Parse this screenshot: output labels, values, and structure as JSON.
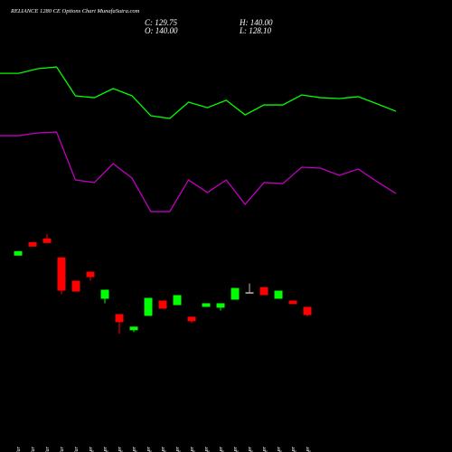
{
  "chart_data": [
    {
      "type": "line",
      "title": "RELIANCE 1280 CE Options Chart MunafaSutra.com",
      "ylim": [
        0,
        100
      ],
      "series": [
        {
          "name": null,
          "color": "#00ff00",
          "values": [
            88.9,
            88.9,
            91.6,
            92.6,
            75.8,
            74.7,
            80.0,
            75.8,
            64.2,
            62.6,
            72.1,
            68.9,
            73.2,
            64.7,
            70.5,
            70.5,
            76.3,
            74.7,
            74.2,
            75.3,
            71.1,
            66.8
          ]
        },
        {
          "name": null,
          "color": "#c000c0",
          "values": [
            52.6,
            52.6,
            54.2,
            54.7,
            26.8,
            25.3,
            36.3,
            27.9,
            8.4,
            8.4,
            26.8,
            19.5,
            26.8,
            12.6,
            25.3,
            24.7,
            34.2,
            33.7,
            29.5,
            33.2,
            25.8,
            18.9
          ]
        }
      ]
    },
    {
      "type": "candlestick",
      "close_text": "C: 129.75",
      "open_text": "O: 140.00",
      "high_text": "H: 140.00",
      "low_text": "L: 128.10",
      "categories": [
        "22 Mar",
        "24 Mar",
        "25 Mar",
        "27 Mar",
        "28 Mar",
        "01 Apr",
        "02 Apr",
        "06 Apr",
        "07 Apr",
        "08 Apr",
        "09 Apr",
        "10 Apr",
        "12 Apr",
        "15 Apr",
        "16 Apr",
        "17 Apr",
        "20 Apr",
        "21 Apr",
        "22 Apr",
        "23 Apr",
        "24 Apr"
      ],
      "open": [
        203.8,
        220.6,
        225.1,
        201.6,
        172.5,
        183.7,
        150.1,
        131.0,
        110.9,
        128.8,
        147.8,
        142.2,
        127.7,
        140.0,
        138.9,
        149.0,
        158.2,
        164.6,
        150.1,
        147.8,
        140.0
      ],
      "close": [
        209.4,
        215.0,
        219.5,
        160.2,
        159.0,
        177.0,
        161.3,
        121.0,
        115.4,
        151.2,
        137.8,
        154.6,
        122.1,
        144.5,
        144.5,
        163.5,
        158.2,
        154.6,
        160.2,
        143.4,
        129.75
      ],
      "high": [
        209.4,
        220.6,
        230.7,
        201.6,
        172.5,
        183.7,
        161.3,
        131.0,
        115.4,
        151.2,
        147.8,
        154.6,
        127.7,
        144.5,
        144.5,
        163.5,
        169.1,
        164.6,
        160.2,
        147.8,
        140.0
      ],
      "low": [
        203.8,
        215.0,
        219.5,
        155.7,
        159.0,
        172.5,
        144.5,
        106.4,
        108.6,
        128.8,
        137.8,
        142.2,
        119.8,
        140.0,
        135.5,
        149.0,
        158.2,
        154.6,
        150.1,
        143.4,
        128.1
      ],
      "up_color": "#00ff00",
      "down_color": "#ff0000",
      "flat_color": "#bbbbbb",
      "ylim": [
        100,
        235
      ]
    }
  ]
}
